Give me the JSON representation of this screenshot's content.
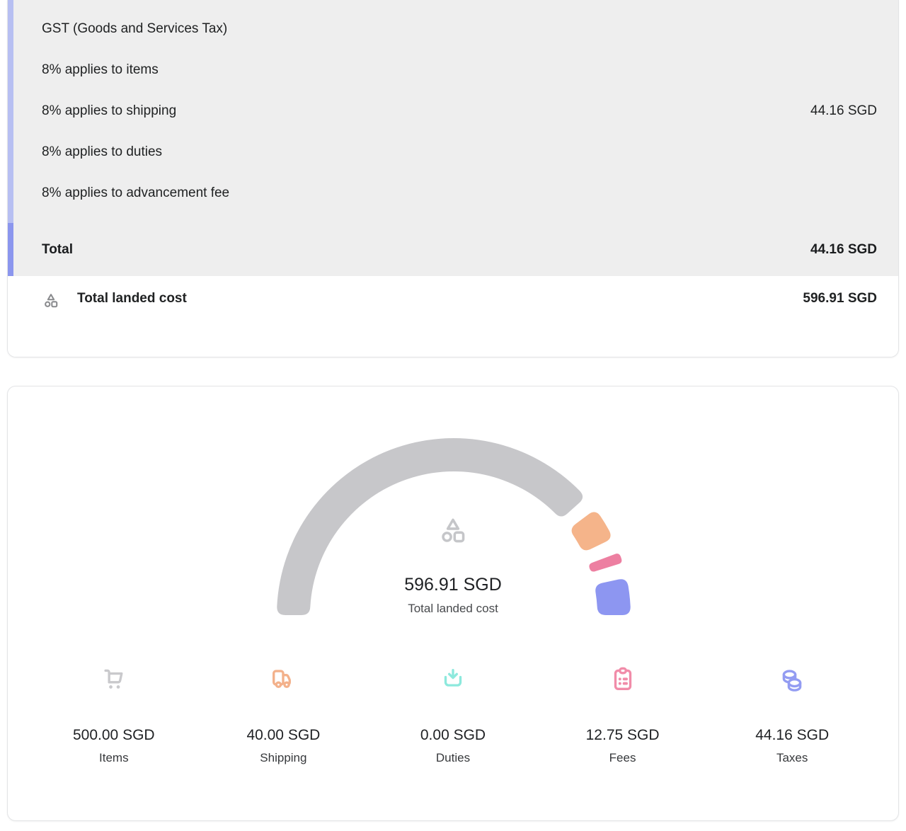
{
  "summary_card": {
    "tax_group": {
      "title": "GST (Goods and Services Tax)",
      "lines": [
        "8% applies to items",
        "8% applies to shipping",
        "8% applies to duties",
        "8% applies to advancement fee"
      ],
      "amount": "44.16 SGD",
      "accent_bar_color": "#b7bff2"
    },
    "total_row": {
      "label": "Total",
      "amount": "44.16 SGD",
      "accent_bar_color": "#8b96ee"
    },
    "landed_cost_row": {
      "icon": "shapes-icon",
      "icon_color": "#8a8b8e",
      "label": "Total landed cost",
      "amount": "596.91 SGD"
    },
    "section_background": "#eeeeee"
  },
  "chart_data": {
    "type": "gauge",
    "title": "Total landed cost",
    "currency": "SGD",
    "total": 596.91,
    "arc_span_degrees": 180,
    "segment_gap_degrees": 5,
    "center": {
      "icon": "shapes-icon",
      "icon_color": "#c5c6c9",
      "value": "596.91 SGD",
      "label": "Total landed cost"
    },
    "segments": [
      {
        "label": "Items",
        "value": 500.0,
        "display": "500.00 SGD",
        "color": "#c7c7ca",
        "icon": "cart-icon",
        "icon_color": "#c9c9cc"
      },
      {
        "label": "Shipping",
        "value": 40.0,
        "display": "40.00 SGD",
        "color": "#f5b48a",
        "icon": "truck-icon",
        "icon_color": "#f3b18b"
      },
      {
        "label": "Duties",
        "value": 0.0,
        "display": "0.00 SGD",
        "color": "#8ce8dc",
        "icon": "download-tray-icon",
        "icon_color": "#8de9dd"
      },
      {
        "label": "Fees",
        "value": 12.75,
        "display": "12.75 SGD",
        "color": "#ed7fa1",
        "icon": "clipboard-icon",
        "icon_color": "#f18ca9"
      },
      {
        "label": "Taxes",
        "value": 44.16,
        "display": "44.16 SGD",
        "color": "#8d96f1",
        "icon": "coins-icon",
        "icon_color": "#939cf2"
      }
    ]
  }
}
